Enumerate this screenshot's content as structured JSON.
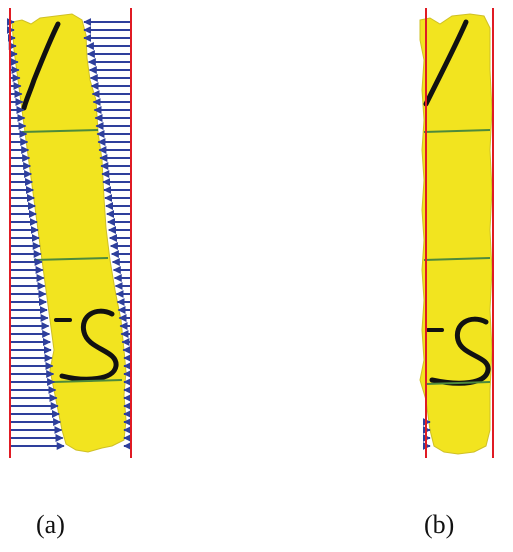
{
  "panels": [
    {
      "label": "(a)",
      "description_mode": "arrows-inward-from-both-bounds"
    },
    {
      "label": "(b)",
      "description_mode": "arrows-inward-from-both-bounds"
    }
  ],
  "colors": {
    "tape": "#f2e41f",
    "tape_edge": "#cfc025",
    "ink": "#111111",
    "guide_line": "#4e8a3c",
    "arrow": "#2e3f9c",
    "boundary": "#e01b24",
    "background": "#ffffff"
  }
}
